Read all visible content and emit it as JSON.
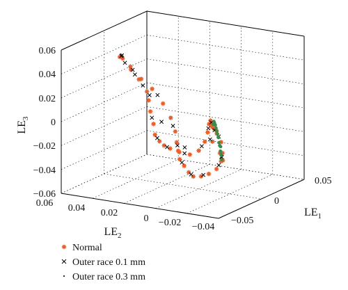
{
  "chart_data": {
    "type": "scatter",
    "projection": "3d",
    "axes": {
      "x": {
        "label": "LE",
        "label_sub": "1",
        "ticks": [
          "0.05",
          "0",
          "−0.05"
        ],
        "range": [
          -0.05,
          0.05
        ]
      },
      "y": {
        "label": "LE",
        "label_sub": "2",
        "ticks": [
          "0.06",
          "0.04",
          "0.02",
          "0",
          "−0.02",
          "−0.04"
        ],
        "range": [
          -0.04,
          0.06
        ]
      },
      "z": {
        "label": "LE",
        "label_sub": "3",
        "ticks": [
          "0.06",
          "0.04",
          "0.02",
          "0",
          "−0.02",
          "−0.04",
          "−0.06"
        ],
        "range": [
          -0.06,
          0.06
        ]
      }
    },
    "grid": true,
    "legend_position": "bottom-left",
    "series": [
      {
        "name": "Normal",
        "marker": "asterisk",
        "color": "#e8612c",
        "points": [
          [
            0.0,
            0.05,
            0.04
          ],
          [
            0.002,
            0.048,
            0.042
          ],
          [
            0.004,
            0.046,
            0.041
          ],
          [
            0.006,
            0.04,
            0.036
          ],
          [
            0.008,
            0.032,
            0.028
          ],
          [
            0.01,
            0.024,
            0.022
          ],
          [
            0.012,
            0.016,
            0.012
          ],
          [
            0.014,
            0.01,
            0.002
          ],
          [
            0.016,
            0.006,
            -0.008
          ],
          [
            0.018,
            0.004,
            -0.016
          ],
          [
            0.02,
            0.002,
            -0.022
          ],
          [
            0.022,
            0.0,
            -0.028
          ],
          [
            0.024,
            -0.004,
            -0.032
          ],
          [
            0.026,
            -0.008,
            -0.036
          ],
          [
            0.028,
            -0.012,
            -0.038
          ],
          [
            0.03,
            -0.018,
            -0.036
          ],
          [
            0.032,
            -0.024,
            -0.032
          ],
          [
            0.034,
            -0.03,
            -0.026
          ],
          [
            0.036,
            -0.034,
            -0.018
          ],
          [
            0.038,
            -0.036,
            -0.01
          ],
          [
            0.036,
            -0.034,
            -0.002
          ],
          [
            0.034,
            -0.03,
            0.006
          ],
          [
            0.032,
            -0.026,
            0.01
          ],
          [
            0.03,
            -0.024,
            0.012
          ],
          [
            0.028,
            -0.022,
            0.008
          ],
          [
            0.026,
            -0.02,
            0.0
          ],
          [
            0.024,
            -0.022,
            -0.008
          ],
          [
            0.03,
            -0.03,
            -0.014
          ],
          [
            0.034,
            -0.034,
            -0.018
          ],
          [
            0.03,
            -0.028,
            0.002
          ],
          [
            0.028,
            -0.024,
            0.006
          ],
          [
            0.026,
            -0.024,
            0.004
          ],
          [
            0.022,
            -0.016,
            -0.01
          ],
          [
            0.018,
            -0.01,
            -0.02
          ],
          [
            0.01,
            0.0,
            -0.028
          ],
          [
            0.004,
            0.01,
            -0.03
          ],
          [
            0.0,
            0.018,
            -0.03
          ],
          [
            -0.004,
            0.024,
            -0.03
          ],
          [
            -0.006,
            0.028,
            -0.028
          ],
          [
            -0.008,
            0.032,
            -0.024
          ],
          [
            -0.01,
            0.034,
            -0.016
          ],
          [
            -0.01,
            0.036,
            -0.006
          ],
          [
            -0.008,
            0.036,
            0.004
          ],
          [
            -0.006,
            0.036,
            0.012
          ],
          [
            -0.004,
            0.04,
            0.022
          ],
          [
            -0.002,
            0.044,
            0.03
          ]
        ]
      },
      {
        "name": "Outer race 0.1 mm",
        "marker": "x",
        "color": "#000000",
        "points": [
          [
            0.0,
            0.049,
            0.041
          ],
          [
            0.003,
            0.047,
            0.043
          ],
          [
            0.007,
            0.038,
            0.034
          ],
          [
            0.011,
            0.02,
            0.018
          ],
          [
            0.015,
            0.008,
            -0.004
          ],
          [
            0.019,
            0.003,
            -0.018
          ],
          [
            0.023,
            -0.002,
            -0.03
          ],
          [
            0.027,
            -0.01,
            -0.037
          ],
          [
            0.031,
            -0.02,
            -0.034
          ],
          [
            0.035,
            -0.032,
            -0.022
          ],
          [
            0.037,
            -0.035,
            -0.014
          ],
          [
            0.035,
            -0.032,
            0.002
          ],
          [
            0.031,
            -0.025,
            0.011
          ],
          [
            0.027,
            -0.021,
            0.004
          ],
          [
            0.025,
            -0.021,
            -0.006
          ],
          [
            0.032,
            -0.032,
            -0.016
          ],
          [
            0.029,
            -0.026,
            0.004
          ],
          [
            0.02,
            -0.013,
            -0.015
          ],
          [
            0.007,
            0.005,
            -0.029
          ],
          [
            -0.002,
            0.021,
            -0.03
          ],
          [
            -0.007,
            0.03,
            -0.026
          ],
          [
            -0.01,
            0.035,
            -0.011
          ],
          [
            -0.009,
            0.036,
            0.008
          ],
          [
            -0.005,
            0.038,
            0.017
          ],
          [
            -0.003,
            0.042,
            0.026
          ],
          [
            0.005,
            0.044,
            0.038
          ],
          [
            -0.012,
            0.03,
            -0.014
          ],
          [
            0.016,
            0.0,
            -0.02
          ]
        ]
      },
      {
        "name": "Outer race 0.3 mm",
        "marker": "dot",
        "color": "#3a8a4a",
        "points": [
          [
            0.026,
            -0.024,
            0.01
          ],
          [
            0.028,
            -0.026,
            0.008
          ],
          [
            0.03,
            -0.028,
            0.004
          ],
          [
            0.032,
            -0.03,
            0.0
          ],
          [
            0.034,
            -0.032,
            -0.006
          ],
          [
            0.036,
            -0.034,
            -0.012
          ],
          [
            0.037,
            -0.035,
            -0.016
          ],
          [
            0.035,
            -0.033,
            -0.01
          ],
          [
            0.033,
            -0.031,
            -0.004
          ],
          [
            0.031,
            -0.029,
            0.002
          ],
          [
            0.029,
            -0.027,
            0.006
          ],
          [
            0.027,
            -0.025,
            0.009
          ],
          [
            0.025,
            -0.023,
            0.007
          ],
          [
            0.028,
            -0.028,
            -0.002
          ],
          [
            0.031,
            -0.031,
            -0.008
          ],
          [
            0.034,
            -0.033,
            -0.014
          ]
        ]
      }
    ]
  }
}
